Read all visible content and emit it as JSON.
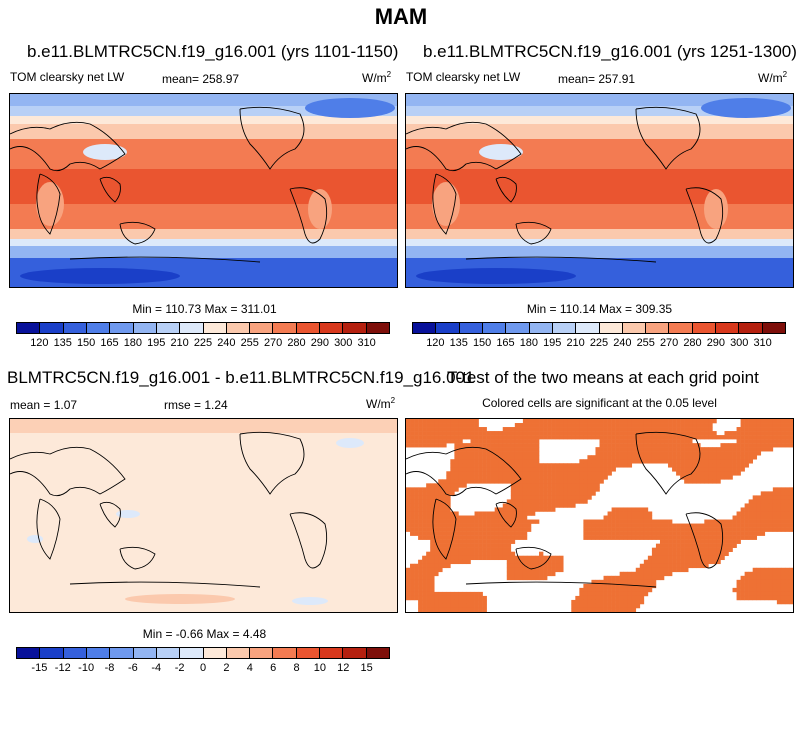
{
  "page_title": "MAM",
  "panels": {
    "top_left": {
      "title": "b.e11.BLMTRC5CN.f19_g16.001 (yrs 1101-1150)",
      "variable": "TOM clearsky net LW",
      "mean_text": "mean= 258.97",
      "units": "W/m",
      "units_sup": "2",
      "minmax_text": "Min = 110.73 Max = 311.01"
    },
    "top_right": {
      "title": "b.e11.BLMTRC5CN.f19_g16.001 (yrs 1251-1300)",
      "variable": "TOM clearsky net LW",
      "mean_text": "mean= 257.91",
      "units": "W/m",
      "units_sup": "2",
      "minmax_text": "Min = 110.14 Max = 309.35"
    },
    "bottom_left": {
      "title": "BLMTRC5CN.f19_g16.001 - b.e11.BLMTRC5CN.f19_g16.001",
      "mean_text": "mean =   1.07",
      "rmse_text": "rmse =   1.24",
      "units": "W/m",
      "units_sup": "2",
      "minmax_text": "Min =  -0.66 Max =  4.48"
    },
    "bottom_right": {
      "title": "T-test of the two means at each grid point",
      "subtitle": "Colored cells are significant at the 0.05 level"
    }
  },
  "colorbar_abs": {
    "labels": [
      "120",
      "135",
      "150",
      "165",
      "180",
      "195",
      "210",
      "225",
      "240",
      "255",
      "270",
      "280",
      "290",
      "300",
      "310"
    ],
    "colors": [
      "#08119a",
      "#1a3fc8",
      "#3560dc",
      "#4f7ee8",
      "#6f99ee",
      "#93b5f2",
      "#b8d0f6",
      "#dde9fa",
      "#fde9d9",
      "#fbc9ad",
      "#f8a37f",
      "#f37b52",
      "#ea5530",
      "#d8381c",
      "#b5200f",
      "#7e0f0a"
    ]
  },
  "colorbar_diff": {
    "labels": [
      "-15",
      "-12",
      "-10",
      "-8",
      "-6",
      "-4",
      "-2",
      "0",
      "2",
      "4",
      "6",
      "8",
      "10",
      "12",
      "15"
    ],
    "colors": [
      "#08119a",
      "#1a3fc8",
      "#3560dc",
      "#4f7ee8",
      "#6f99ee",
      "#93b5f2",
      "#b8d0f6",
      "#dde9fa",
      "#fde9d9",
      "#fbc9ad",
      "#f8a37f",
      "#f37b52",
      "#ea5530",
      "#d8381c",
      "#b5200f",
      "#7e0f0a"
    ]
  },
  "colors": {
    "ttest_significant": "#ee7134",
    "diff_background": "#fde9d9"
  }
}
